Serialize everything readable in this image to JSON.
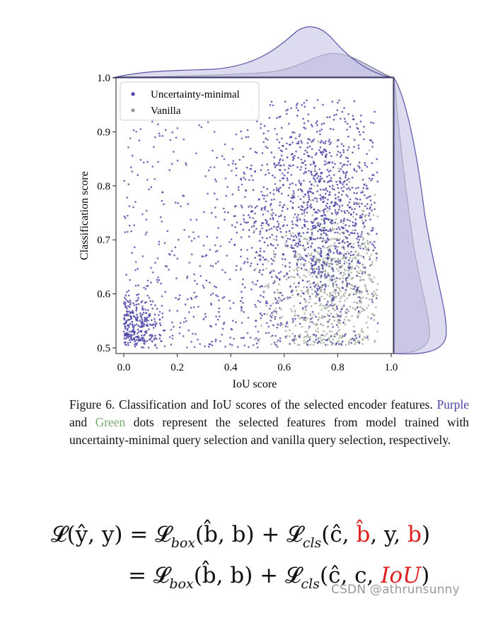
{
  "chart_data": {
    "type": "scatter",
    "xlabel": "IoU score",
    "ylabel": "Classification score",
    "xlim": [
      0.0,
      1.0
    ],
    "ylim": [
      0.5,
      1.0
    ],
    "x_ticks": [
      "0.0",
      "0.2",
      "0.4",
      "0.6",
      "0.8",
      "1.0"
    ],
    "y_ticks": [
      "0.5",
      "0.6",
      "0.7",
      "0.8",
      "0.9",
      "1.0"
    ],
    "legend_position": "top-left",
    "marginals": "density curves on top (IoU) and right (classification) edges",
    "series": [
      {
        "name": "Uncertainty-minimal",
        "color": "#4b45a8",
        "density_peak_x": 0.68,
        "density_peak_y": 0.53,
        "clusters": [
          {
            "x_center": 0.72,
            "y_center": 0.75,
            "x_spread": 0.14,
            "y_spread": 0.12
          },
          {
            "x_center": 0.05,
            "y_center": 0.54,
            "x_spread": 0.04,
            "y_spread": 0.03
          }
        ]
      },
      {
        "name": "Vanilla",
        "color": "#8f9a8c",
        "density_peak_x": 0.76,
        "density_peak_y": 0.52,
        "clusters": [
          {
            "x_center": 0.78,
            "y_center": 0.62,
            "x_spread": 0.12,
            "y_spread": 0.08
          }
        ]
      }
    ]
  },
  "caption": {
    "lead": "Figure 6.  Classification and IoU scores of the selected encoder features. ",
    "purple_word": "Purple",
    "and_word": " and ",
    "green_word": "Green",
    "rest": " dots represent the selected features from model trained with uncertainty-minimal query selection and vanilla query selection, respectively."
  },
  "formula": {
    "line1_lhs": "𝓛(ŷ, y) = 𝓛",
    "box_sub": "box",
    "line1_mid": "(b̂, b) + 𝓛",
    "cls_sub": "cls",
    "line1_args_a": "(ĉ, ",
    "line1_red1": "b̂",
    "line1_args_b": ", y, ",
    "line1_red2": "b",
    "line1_close": ")",
    "line2_eq": "= 𝓛",
    "line2_mid": "(b̂, b) + 𝓛",
    "line2_args": "(ĉ, c, ",
    "line2_red": "IoU",
    "line2_close": ")"
  },
  "watermark": "CSDN @athrunsunny",
  "colors": {
    "purple": "#4b45a8",
    "green": "#78a86e",
    "gray_dot": "#8f9a8c",
    "density_fill": "#c7c3e6",
    "density_edge": "#5a55a8",
    "red": "#e02020"
  }
}
